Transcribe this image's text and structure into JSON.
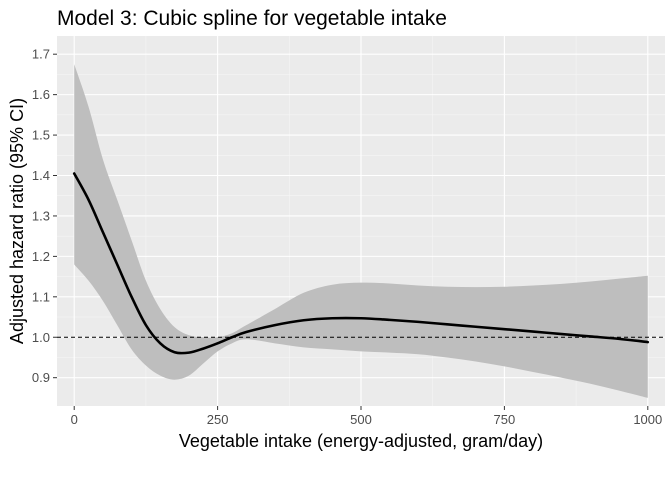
{
  "chart_data": {
    "type": "line",
    "title": "Model 3: Cubic spline for vegetable intake",
    "xlabel": "Vegetable intake (energy-adjusted, gram/day)",
    "ylabel": "Adjusted hazard ratio (95% CI)",
    "xlim": [
      -30,
      1030
    ],
    "ylim": [
      0.83,
      1.745
    ],
    "x_ticks": [
      0,
      250,
      500,
      750,
      1000
    ],
    "x_tick_labels": [
      "0",
      "250",
      "500",
      "750",
      "1000"
    ],
    "y_ticks": [
      0.9,
      1.0,
      1.1,
      1.2,
      1.3,
      1.4,
      1.5,
      1.6,
      1.7
    ],
    "y_tick_labels": [
      "0.9",
      "1.0",
      "1.1",
      "1.2",
      "1.3",
      "1.4",
      "1.5",
      "1.6",
      "1.7"
    ],
    "grid": true,
    "reference_line": {
      "y": 1.0,
      "style": "dashed"
    },
    "series": [
      {
        "x": [
          0,
          25,
          50,
          75,
          100,
          125,
          150,
          175,
          200,
          225,
          250,
          275,
          300,
          350,
          400,
          450,
          500,
          550,
          600,
          650,
          700,
          750,
          800,
          850,
          900,
          950,
          1000
        ],
        "estimate": [
          1.405,
          1.34,
          1.26,
          1.18,
          1.1,
          1.03,
          0.985,
          0.963,
          0.962,
          0.972,
          0.985,
          1.0,
          1.013,
          1.03,
          1.042,
          1.047,
          1.047,
          1.043,
          1.038,
          1.032,
          1.026,
          1.02,
          1.014,
          1.008,
          1.002,
          0.996,
          0.988
        ],
        "lower": [
          1.18,
          1.14,
          1.09,
          1.03,
          0.97,
          0.93,
          0.905,
          0.895,
          0.905,
          0.935,
          0.965,
          0.985,
          0.995,
          0.985,
          0.975,
          0.97,
          0.965,
          0.962,
          0.958,
          0.95,
          0.94,
          0.928,
          0.914,
          0.9,
          0.885,
          0.868,
          0.85
        ],
        "upper": [
          1.675,
          1.57,
          1.44,
          1.34,
          1.24,
          1.14,
          1.07,
          1.025,
          1.005,
          1.0,
          1.0,
          1.01,
          1.03,
          1.07,
          1.11,
          1.13,
          1.135,
          1.133,
          1.128,
          1.125,
          1.124,
          1.125,
          1.128,
          1.132,
          1.138,
          1.145,
          1.152
        ]
      }
    ],
    "colors": {
      "panel": "#EBEBEB",
      "grid_major": "#FFFFFF",
      "ribbon": "#BEBEBE",
      "line": "#000000",
      "reference": "#000000"
    }
  }
}
